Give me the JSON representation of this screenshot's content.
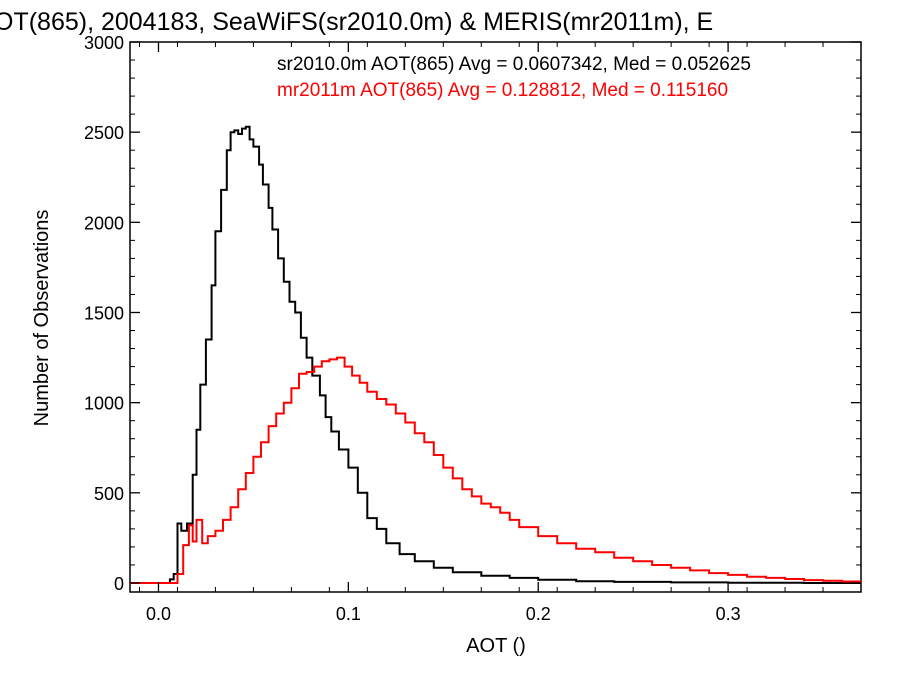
{
  "chart_data": {
    "type": "line",
    "title": "OT(865), 2004183, SeaWiFS(sr2010.0m) & MERIS(mr2011m), E",
    "xlabel": "AOT ()",
    "ylabel": "Number of Observations",
    "xlim": [
      -0.015,
      0.37
    ],
    "ylim": [
      -50,
      3000
    ],
    "x_ticks": [
      0.0,
      0.1,
      0.2,
      0.3
    ],
    "x_tick_labels": [
      "0.0",
      "0.1",
      "0.2",
      "0.3"
    ],
    "y_ticks": [
      0,
      500,
      1000,
      1500,
      2000,
      2500,
      3000
    ],
    "y_tick_labels": [
      "0",
      "500",
      "1000",
      "1500",
      "2000",
      "2500",
      "3000"
    ],
    "grid": false,
    "legend_position": "top-right (annotations)",
    "annotations": [
      {
        "text": "sr2010.0m AOT(865) Avg = 0.0607342, Med = 0.052625",
        "color": "#000000"
      },
      {
        "text": "mr2011m AOT(865) Avg = 0.128812, Med = 0.115160",
        "color": "#ff0000"
      }
    ],
    "series": [
      {
        "color": "#000000",
        "step": "histogram",
        "x": [
          -0.015,
          0.0,
          0.006,
          0.008,
          0.01,
          0.012,
          0.015,
          0.018,
          0.02,
          0.022,
          0.025,
          0.028,
          0.03,
          0.033,
          0.036,
          0.038,
          0.04,
          0.042,
          0.044,
          0.046,
          0.048,
          0.05,
          0.053,
          0.055,
          0.058,
          0.06,
          0.063,
          0.066,
          0.069,
          0.072,
          0.075,
          0.078,
          0.081,
          0.085,
          0.088,
          0.091,
          0.095,
          0.1,
          0.105,
          0.11,
          0.115,
          0.12,
          0.127,
          0.135,
          0.145,
          0.155,
          0.17,
          0.185,
          0.2,
          0.22,
          0.24,
          0.27,
          0.3,
          0.34,
          0.37
        ],
        "y": [
          0,
          0,
          20,
          50,
          330,
          290,
          330,
          600,
          850,
          1100,
          1350,
          1650,
          1950,
          2180,
          2400,
          2500,
          2510,
          2490,
          2520,
          2530,
          2460,
          2420,
          2320,
          2210,
          2080,
          1960,
          1800,
          1670,
          1560,
          1500,
          1360,
          1250,
          1150,
          1040,
          920,
          840,
          740,
          640,
          500,
          360,
          300,
          220,
          160,
          120,
          85,
          60,
          40,
          28,
          18,
          10,
          6,
          3,
          1,
          0,
          0
        ]
      },
      {
        "color": "#ff0000",
        "step": "histogram",
        "x": [
          -0.015,
          0.005,
          0.01,
          0.013,
          0.016,
          0.018,
          0.02,
          0.023,
          0.026,
          0.03,
          0.034,
          0.038,
          0.042,
          0.046,
          0.05,
          0.054,
          0.058,
          0.062,
          0.066,
          0.07,
          0.074,
          0.078,
          0.082,
          0.086,
          0.09,
          0.094,
          0.098,
          0.102,
          0.106,
          0.11,
          0.115,
          0.12,
          0.125,
          0.13,
          0.135,
          0.14,
          0.145,
          0.15,
          0.155,
          0.16,
          0.165,
          0.17,
          0.175,
          0.18,
          0.185,
          0.19,
          0.2,
          0.21,
          0.22,
          0.23,
          0.24,
          0.25,
          0.26,
          0.27,
          0.28,
          0.29,
          0.3,
          0.31,
          0.32,
          0.33,
          0.34,
          0.35,
          0.36,
          0.37
        ],
        "y": [
          0,
          0,
          50,
          210,
          320,
          230,
          350,
          220,
          260,
          290,
          350,
          420,
          520,
          610,
          700,
          780,
          870,
          940,
          1000,
          1080,
          1160,
          1170,
          1200,
          1230,
          1240,
          1250,
          1200,
          1150,
          1110,
          1060,
          1020,
          990,
          940,
          890,
          830,
          780,
          710,
          640,
          580,
          520,
          480,
          440,
          420,
          390,
          350,
          310,
          260,
          220,
          190,
          170,
          140,
          120,
          100,
          85,
          70,
          55,
          45,
          35,
          28,
          22,
          16,
          12,
          8,
          5
        ]
      }
    ]
  }
}
